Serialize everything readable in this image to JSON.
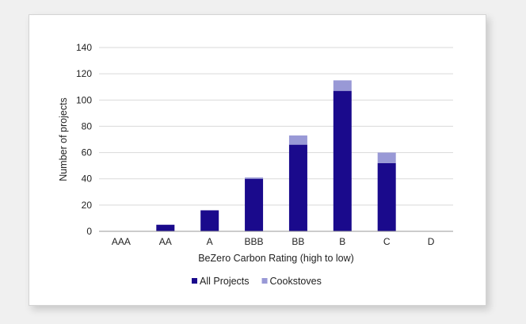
{
  "chart_data": {
    "type": "bar",
    "stacked": true,
    "title": "",
    "xlabel": "BeZero Carbon Rating (high to low)",
    "ylabel": "Number of projects",
    "ylim": [
      0,
      140
    ],
    "yticks": [
      0,
      20,
      40,
      60,
      80,
      100,
      120,
      140
    ],
    "grid": true,
    "legend_position": "bottom",
    "categories": [
      "AAA",
      "AA",
      "A",
      "BBB",
      "BB",
      "B",
      "C",
      "D"
    ],
    "series": [
      {
        "name": "All Projects",
        "color": "#1a0a8c",
        "values": [
          0,
          5,
          16,
          40,
          66,
          107,
          52,
          0
        ]
      },
      {
        "name": "Cookstoves",
        "color": "#9999d6",
        "values": [
          0,
          0,
          0,
          1,
          7,
          8,
          8,
          0
        ]
      }
    ]
  }
}
